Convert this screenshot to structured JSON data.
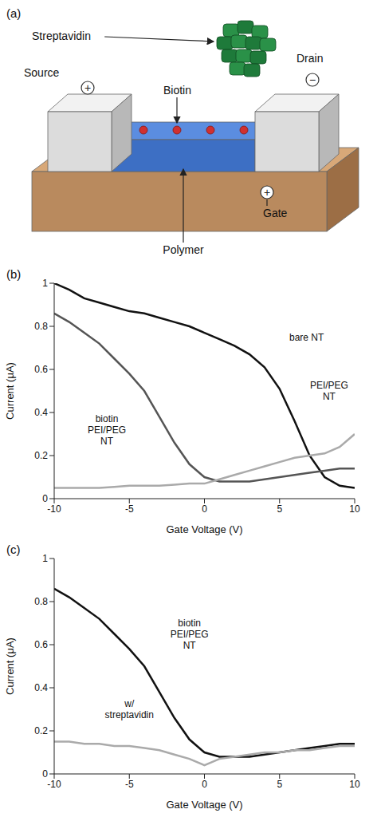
{
  "diagram": {
    "panel_label": "(a)",
    "labels": {
      "streptavidin": "Streptavidin",
      "biotin": "Biotin",
      "source": "Source",
      "drain": "Drain",
      "gate": "Gate",
      "polymer": "Polymer"
    },
    "signs": {
      "source": "+",
      "drain": "−",
      "gate": "+"
    }
  },
  "chart_data": [
    {
      "type": "line",
      "panel_label": "(b)",
      "x_label": "Gate Voltage (V)",
      "y_label": "Current (μA)",
      "x": [
        -10,
        -9,
        -8,
        -7,
        -6,
        -5,
        -4,
        -3,
        -2,
        -1,
        0,
        1,
        2,
        3,
        4,
        5,
        6,
        7,
        8,
        9,
        10
      ],
      "xlim": [
        -10,
        10
      ],
      "xticks": [
        -10,
        -5,
        0,
        5,
        10
      ],
      "ylim": [
        0,
        1
      ],
      "yticks": [
        0,
        0.2,
        0.4,
        0.6,
        0.8,
        1
      ],
      "series": [
        {
          "name": "bare NT",
          "color": "#111111",
          "values": [
            1.0,
            0.97,
            0.93,
            0.91,
            0.89,
            0.87,
            0.86,
            0.84,
            0.82,
            0.8,
            0.77,
            0.74,
            0.71,
            0.67,
            0.61,
            0.51,
            0.36,
            0.2,
            0.1,
            0.06,
            0.05
          ]
        },
        {
          "name": "biotin PEI/PEG NT",
          "color": "#555555",
          "values": [
            0.86,
            0.82,
            0.77,
            0.72,
            0.65,
            0.58,
            0.5,
            0.38,
            0.26,
            0.16,
            0.1,
            0.08,
            0.08,
            0.08,
            0.09,
            0.1,
            0.11,
            0.12,
            0.13,
            0.14,
            0.14
          ]
        },
        {
          "name": "PEI/PEG NT",
          "color": "#aaaaaa",
          "values": [
            0.05,
            0.05,
            0.05,
            0.05,
            0.055,
            0.06,
            0.06,
            0.06,
            0.065,
            0.07,
            0.07,
            0.09,
            0.11,
            0.13,
            0.15,
            0.17,
            0.19,
            0.2,
            0.21,
            0.24,
            0.3
          ]
        }
      ],
      "annotations": [
        {
          "text": "bare NT",
          "x": 6.8,
          "y": 0.75
        },
        {
          "text": "PEI/PEG NT",
          "x": 8.3,
          "y": 0.5
        },
        {
          "text": "biotin PEI/PEG NT",
          "x": -6.5,
          "y": 0.32
        }
      ]
    },
    {
      "type": "line",
      "panel_label": "(c)",
      "x_label": "Gate Voltage (V)",
      "y_label": "Current (μA)",
      "x": [
        -10,
        -9,
        -8,
        -7,
        -6,
        -5,
        -4,
        -3,
        -2,
        -1,
        0,
        1,
        2,
        3,
        4,
        5,
        6,
        7,
        8,
        9,
        10
      ],
      "xlim": [
        -10,
        10
      ],
      "xticks": [
        -10,
        -5,
        0,
        5,
        10
      ],
      "ylim": [
        0,
        1
      ],
      "yticks": [
        0,
        0.2,
        0.4,
        0.6,
        0.8,
        1
      ],
      "series": [
        {
          "name": "biotin PEI/PEG NT",
          "color": "#111111",
          "values": [
            0.86,
            0.82,
            0.77,
            0.72,
            0.65,
            0.58,
            0.5,
            0.38,
            0.26,
            0.16,
            0.1,
            0.08,
            0.08,
            0.08,
            0.09,
            0.1,
            0.11,
            0.12,
            0.13,
            0.14,
            0.14
          ]
        },
        {
          "name": "w/ streptavidin",
          "color": "#aaaaaa",
          "values": [
            0.15,
            0.15,
            0.14,
            0.14,
            0.13,
            0.13,
            0.12,
            0.11,
            0.09,
            0.07,
            0.04,
            0.07,
            0.08,
            0.09,
            0.1,
            0.1,
            0.11,
            0.11,
            0.12,
            0.13,
            0.13
          ]
        }
      ],
      "annotations": [
        {
          "text": "biotin PEI/PEG NT",
          "x": -1,
          "y": 0.65
        },
        {
          "text": "w/ streptavidin",
          "x": -5,
          "y": 0.3
        }
      ]
    }
  ]
}
